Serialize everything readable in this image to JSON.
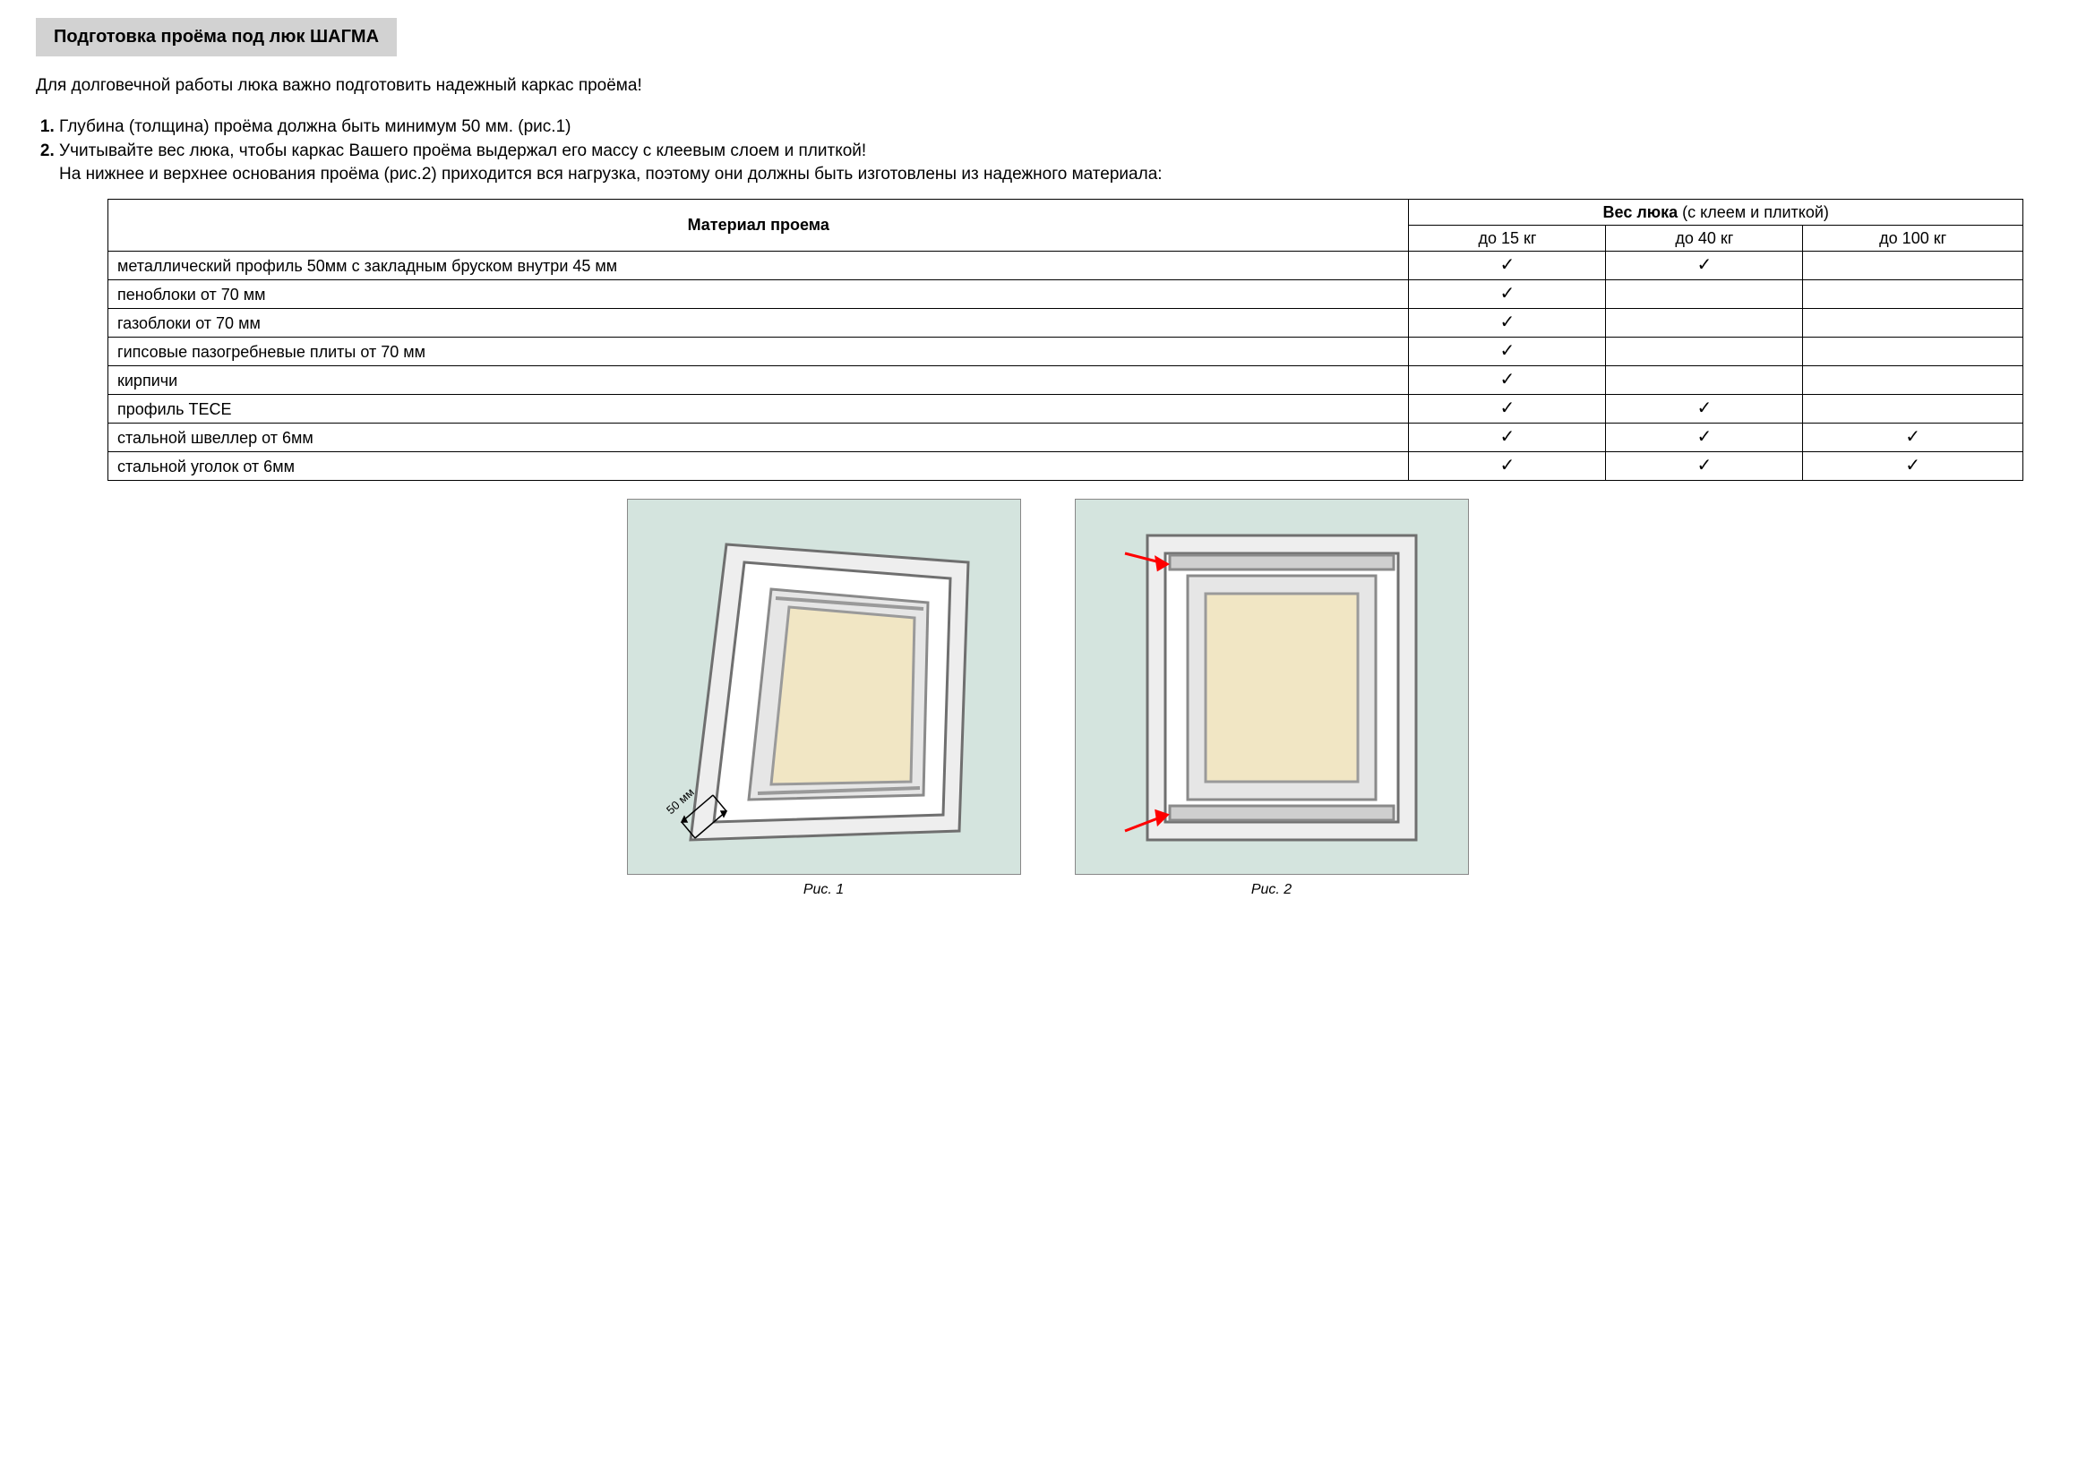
{
  "colors": {
    "heading_bg": "#d2d2d2",
    "page_bg": "#ffffff",
    "text": "#000000",
    "figure_bg": "#d4e4de",
    "figure_border": "#888888",
    "table_border": "#000000",
    "panel_fill": "#f1e6c4",
    "frame_stroke": "#6f6f6f",
    "frame_inner_stroke": "#9a9a9a",
    "arrow_red": "#ff0000",
    "dim_text": "#000000"
  },
  "heading": "Подготовка проёма под люк ШАГМА",
  "intro": "Для долговечной работы люка важно подготовить надежный каркас проёма!",
  "list": {
    "item1": "Глубина (толщина) проёма должна быть минимум 50 мм. (рис.1)",
    "item2_a": "Учитывайте вес люка, чтобы каркас Вашего проёма выдержал его массу с клеевым слоем и плиткой!",
    "item2_b": "На нижнее и верхнее основания проёма (рис.2) приходится вся нагрузка, поэтому они должны быть изготовлены из надежного материала:"
  },
  "table": {
    "header_material": "Материал проема",
    "header_weight_bold": "Вес люка",
    "header_weight_rest": " (с клеем и плиткой)",
    "sub1": "до 15 кг",
    "sub2": "до 40 кг",
    "sub3": "до 100 кг",
    "check": "✓",
    "rows": [
      {
        "mat": "металлический профиль 50мм с закладным бруском внутри 45 мм",
        "c1": true,
        "c2": true,
        "c3": false
      },
      {
        "mat": "пеноблоки от 70 мм",
        "c1": true,
        "c2": false,
        "c3": false
      },
      {
        "mat": "газоблоки от 70 мм",
        "c1": true,
        "c2": false,
        "c3": false
      },
      {
        "mat": "гипсовые пазогребневые плиты от 70 мм",
        "c1": true,
        "c2": false,
        "c3": false
      },
      {
        "mat": "кирпичи",
        "c1": true,
        "c2": false,
        "c3": false
      },
      {
        "mat": "профиль TECE",
        "c1": true,
        "c2": true,
        "c3": false
      },
      {
        "mat": "стальной швеллер от 6мм",
        "c1": true,
        "c2": true,
        "c3": true
      },
      {
        "mat": "стальной уголок от 6мм",
        "c1": true,
        "c2": true,
        "c3": true
      }
    ]
  },
  "figures": {
    "fig1_caption": "Рис. 1",
    "fig2_caption": "Рис. 2",
    "dim_label": "50 мм"
  }
}
